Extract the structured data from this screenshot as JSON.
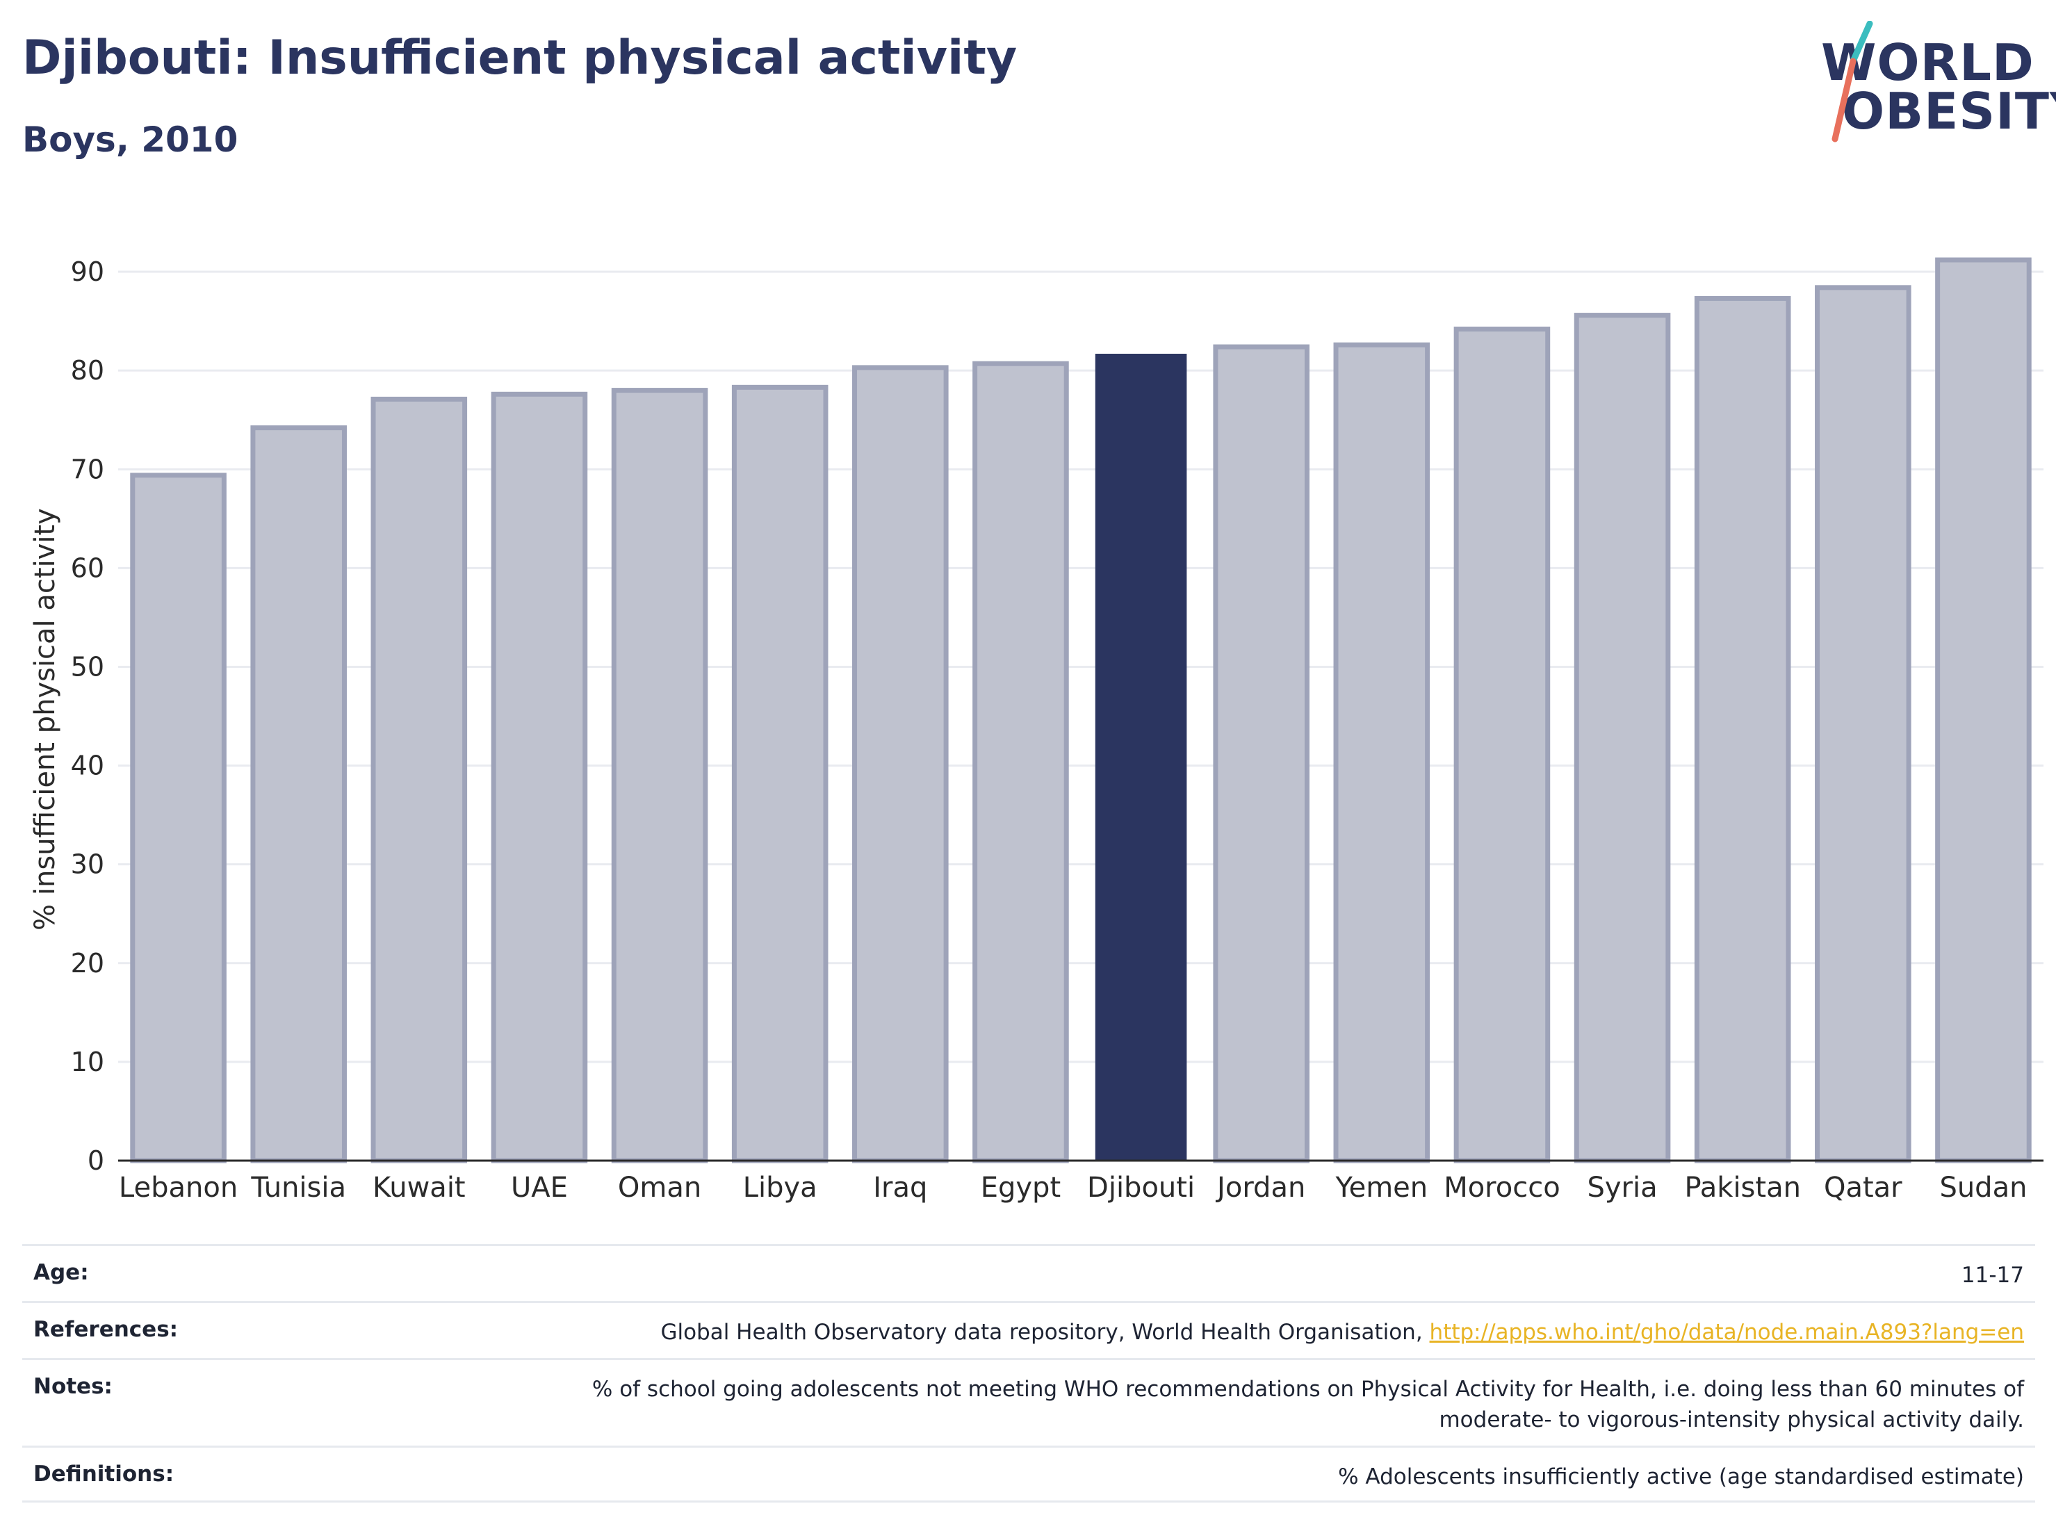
{
  "header": {
    "title": "Djibouti: Insufficient physical activity",
    "subtitle": "Boys, 2010"
  },
  "logo": {
    "line1": "WORLD",
    "line2": "OBESITY"
  },
  "colors": {
    "highlight_bar": "#2b3560",
    "other_bar_fill": "#bfc2cf",
    "other_bar_stroke": "#9ea3b9",
    "title": "#2b3560",
    "link": "#e8b425",
    "logo_teal": "#3bbdbf",
    "logo_coral": "#e8705c"
  },
  "chart_data": {
    "type": "bar",
    "title": "Djibouti: Insufficient physical activity",
    "subtitle": "Boys, 2010",
    "xlabel": "",
    "ylabel": "% insufficient physical activity",
    "ylim": [
      0,
      95
    ],
    "yticks": [
      0,
      10,
      20,
      30,
      40,
      50,
      60,
      70,
      80,
      90
    ],
    "grid": true,
    "highlight": "Djibouti",
    "categories": [
      "Lebanon",
      "Tunisia",
      "Kuwait",
      "UAE",
      "Oman",
      "Libya",
      "Iraq",
      "Egypt",
      "Djibouti",
      "Jordan",
      "Yemen",
      "Morocco",
      "Syria",
      "Pakistan",
      "Qatar",
      "Sudan"
    ],
    "values": [
      69.4,
      74.2,
      77.1,
      77.6,
      78.0,
      78.3,
      80.3,
      80.7,
      81.7,
      82.4,
      82.6,
      84.2,
      85.6,
      87.3,
      88.4,
      91.2
    ]
  },
  "info": {
    "age_label": "Age:",
    "age_value": "11-17",
    "references_label": "References:",
    "references_text": "Global Health Observatory data repository, World Health Organisation, ",
    "references_link": "http://apps.who.int/gho/data/node.main.A893?lang=en",
    "notes_label": "Notes:",
    "notes_text": "% of school going adolescents not meeting WHO recommendations on Physical Activity for Health, i.e. doing less than 60 minutes of moderate- to vigorous-intensity physical activity daily.",
    "definitions_label": "Definitions:",
    "definitions_text": "% Adolescents insufficiently active (age standardised estimate)"
  }
}
